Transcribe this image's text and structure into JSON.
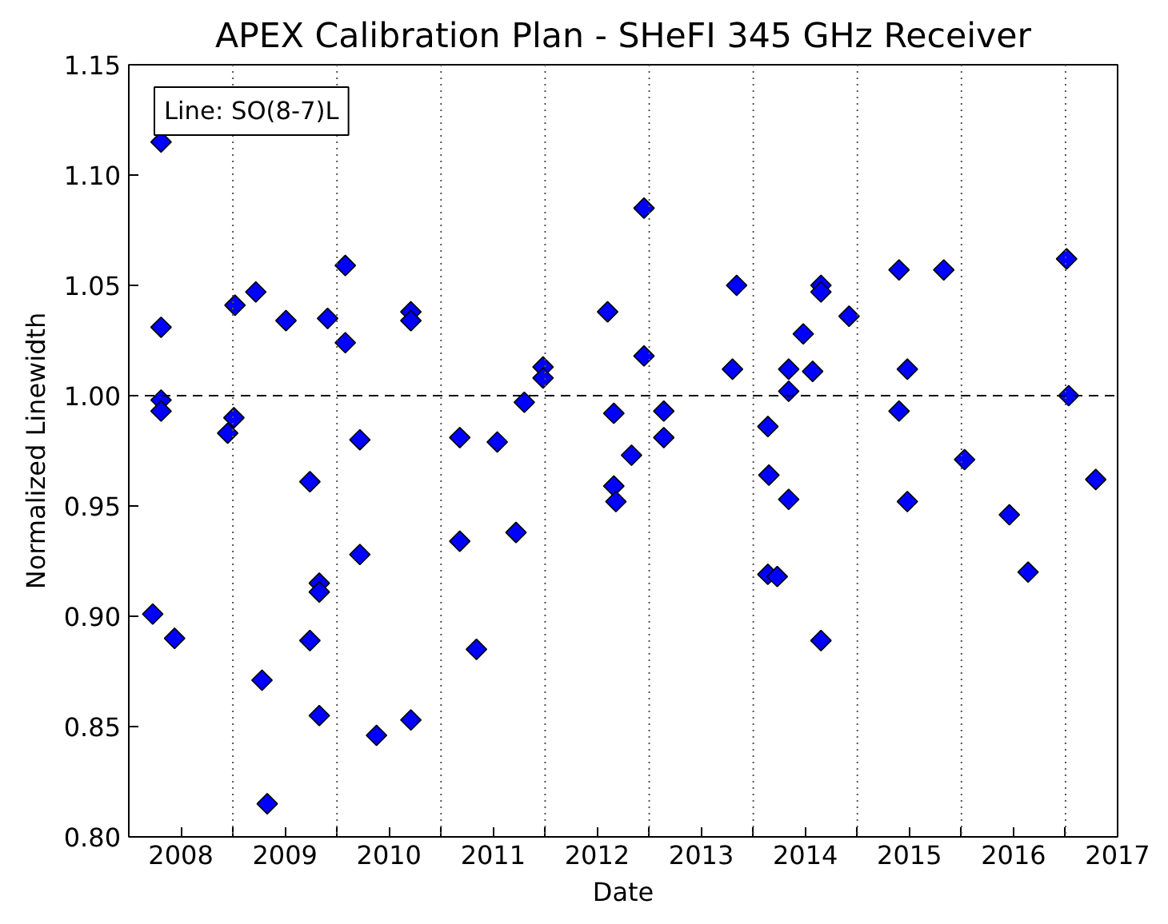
{
  "chart_data": {
    "type": "scatter",
    "title": "APEX Calibration Plan - SHeFI 345 GHz Receiver",
    "xlabel": "Date",
    "ylabel": "Normalized Linewidth",
    "annotations": [
      "Line: SO(8-7)L"
    ],
    "x": [
      2007.81,
      2007.81,
      2007.81,
      2007.81,
      2007.73,
      2007.94,
      2008.52,
      2008.72,
      2008.45,
      2008.51,
      2009.01,
      2008.78,
      2008.83,
      2009.24,
      2009.24,
      2009.33,
      2009.33,
      2009.33,
      2009.41,
      2009.58,
      2009.58,
      2009.72,
      2009.72,
      2009.88,
      2010.21,
      2010.21,
      2010.21,
      2010.68,
      2010.68,
      2010.84,
      2011.04,
      2011.22,
      2011.3,
      2011.48,
      2011.48,
      2012.1,
      2012.16,
      2012.16,
      2012.18,
      2012.33,
      2012.45,
      2012.45,
      2012.64,
      2012.64,
      2013.3,
      2013.34,
      2013.64,
      2013.65,
      2013.64,
      2013.73,
      2013.84,
      2013.84,
      2013.84,
      2013.98,
      2014.07,
      2014.15,
      2014.15,
      2014.15,
      2014.42,
      2014.9,
      2014.9,
      2014.98,
      2014.98,
      2015.33,
      2015.53,
      2015.96,
      2016.14,
      2016.51,
      2016.53,
      2016.79
    ],
    "series": [
      {
        "color": "#0000ff",
        "values": [
          1.115,
          1.031,
          0.998,
          0.993,
          0.901,
          0.89,
          1.041,
          1.047,
          0.983,
          0.99,
          1.034,
          0.871,
          0.815,
          0.961,
          0.889,
          0.915,
          0.911,
          0.855,
          1.035,
          1.059,
          1.024,
          0.98,
          0.928,
          0.846,
          1.038,
          1.034,
          0.853,
          0.981,
          0.934,
          0.885,
          0.979,
          0.938,
          0.997,
          1.013,
          1.008,
          1.038,
          0.992,
          0.959,
          0.952,
          0.973,
          1.085,
          1.018,
          0.993,
          0.981,
          1.012,
          1.05,
          0.986,
          0.964,
          0.919,
          0.918,
          1.012,
          1.002,
          0.953,
          1.028,
          1.011,
          1.05,
          1.047,
          0.889,
          1.036,
          1.057,
          0.993,
          1.012,
          0.952,
          1.057,
          0.971,
          0.946,
          0.92,
          1.062,
          1.0,
          0.962
        ]
      }
    ],
    "marker": "diamond",
    "grid": false,
    "xlim": [
      2007.5,
      2017.0
    ],
    "xticks": [
      2008,
      {
        "value": 2008.5,
        "label": null
      },
      2009,
      {
        "value": 2009.5,
        "label": null
      },
      2010,
      {
        "value": 2010.5,
        "label": null
      },
      2011,
      {
        "value": 2011.5,
        "label": null
      },
      2012,
      {
        "value": 2012.5,
        "label": null
      },
      2013,
      {
        "value": 2013.5,
        "label": null
      },
      2014,
      {
        "value": 2014.5,
        "label": null
      },
      2015,
      {
        "value": 2015.5,
        "label": null
      },
      2016,
      {
        "value": 2016.5,
        "label": null
      },
      2017
    ],
    "ylim": [
      0.8,
      1.15
    ],
    "yticks": [
      {
        "value": 0.8,
        "label": "0.80"
      },
      {
        "value": 0.85,
        "label": "0.85"
      },
      {
        "value": 0.9,
        "label": "0.90"
      },
      {
        "value": 0.95,
        "label": "0.95"
      },
      {
        "value": 1.0,
        "label": "1.00"
      },
      {
        "value": 1.05,
        "label": "1.05"
      },
      {
        "value": 1.1,
        "label": "1.10"
      },
      {
        "value": 1.15,
        "label": "1.15"
      }
    ],
    "ref_lines": [
      {
        "axis": "y",
        "value": 1.0,
        "color": "#000000",
        "line_style": "dashed"
      },
      {
        "axis": "x",
        "value": 2008.5,
        "color": "#555555",
        "line_style": "dotted"
      },
      {
        "axis": "x",
        "value": 2009.5,
        "color": "#555555",
        "line_style": "dotted"
      },
      {
        "axis": "x",
        "value": 2010.5,
        "color": "#555555",
        "line_style": "dotted"
      },
      {
        "axis": "x",
        "value": 2011.5,
        "color": "#555555",
        "line_style": "dotted"
      },
      {
        "axis": "x",
        "value": 2012.5,
        "color": "#555555",
        "line_style": "dotted"
      },
      {
        "axis": "x",
        "value": 2013.5,
        "color": "#555555",
        "line_style": "dotted"
      },
      {
        "axis": "x",
        "value": 2014.5,
        "color": "#555555",
        "line_style": "dotted"
      },
      {
        "axis": "x",
        "value": 2015.5,
        "color": "#555555",
        "line_style": "dotted"
      },
      {
        "axis": "x",
        "value": 2016.5,
        "color": "#555555",
        "line_style": "dotted"
      }
    ]
  }
}
